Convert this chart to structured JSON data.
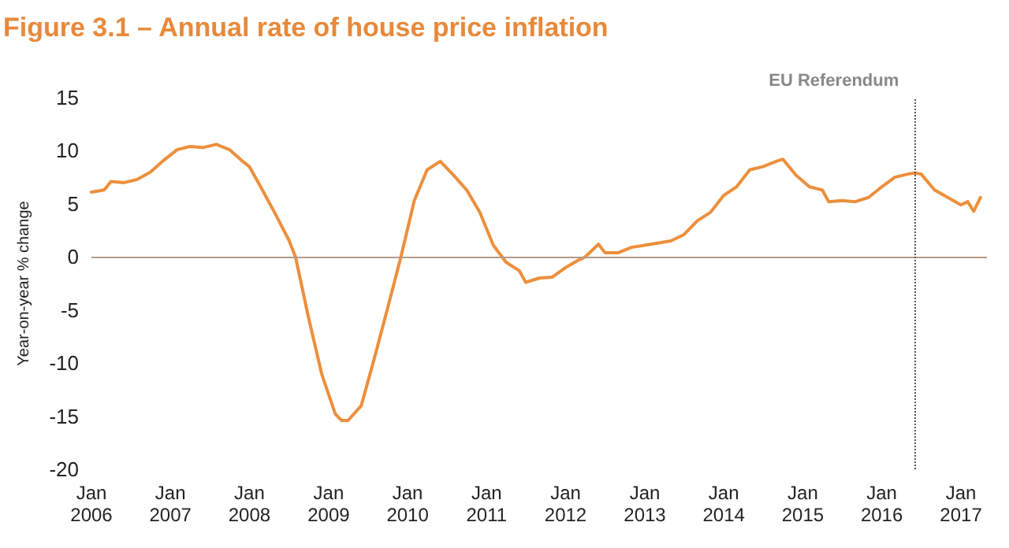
{
  "chart_data": {
    "type": "line",
    "title": "Figure 3.1 – Annual rate of house price inflation",
    "ylabel": "Year-on-year % change",
    "x": [
      "2006-01",
      "2006-03",
      "2006-04",
      "2006-06",
      "2006-08",
      "2006-10",
      "2006-12",
      "2007-02",
      "2007-04",
      "2007-06",
      "2007-08",
      "2007-10",
      "2007-12",
      "2008-01",
      "2008-03",
      "2008-05",
      "2008-07",
      "2008-08",
      "2008-10",
      "2008-12",
      "2009-02",
      "2009-03",
      "2009-04",
      "2009-06",
      "2009-08",
      "2009-10",
      "2009-12",
      "2010-02",
      "2010-04",
      "2010-06",
      "2010-08",
      "2010-10",
      "2010-12",
      "2011-02",
      "2011-04",
      "2011-06",
      "2011-07",
      "2011-09",
      "2011-11",
      "2012-01",
      "2012-03",
      "2012-04",
      "2012-06",
      "2012-07",
      "2012-09",
      "2012-11",
      "2013-01",
      "2013-03",
      "2013-05",
      "2013-07",
      "2013-09",
      "2013-11",
      "2014-01",
      "2014-03",
      "2014-05",
      "2014-07",
      "2014-09",
      "2014-10",
      "2014-12",
      "2015-02",
      "2015-04",
      "2015-05",
      "2015-07",
      "2015-09",
      "2015-11",
      "2016-01",
      "2016-03",
      "2016-05",
      "2016-06",
      "2016-07",
      "2016-09",
      "2016-11",
      "2017-01",
      "2017-02",
      "2017-03",
      "2017-04"
    ],
    "series": [
      {
        "color": "#ec8f3c",
        "values": [
          6.1,
          6.3,
          7.1,
          7.0,
          7.3,
          8.0,
          9.1,
          10.1,
          10.4,
          10.3,
          10.6,
          10.1,
          9.0,
          8.5,
          6.3,
          4.0,
          1.6,
          0,
          -5.8,
          -11.1,
          -14.8,
          -15.4,
          -15.4,
          -14.0,
          -9.5,
          -4.8,
          0,
          5.3,
          8.2,
          9.0,
          7.7,
          6.3,
          4.2,
          1.1,
          -0.5,
          -1.3,
          -2.4,
          -2.0,
          -1.9,
          -1.0,
          -0.3,
          0,
          1.2,
          0.4,
          0.4,
          0.9,
          1.1,
          1.3,
          1.5,
          2.1,
          3.4,
          4.2,
          5.8,
          6.6,
          8.2,
          8.5,
          9.0,
          9.2,
          7.7,
          6.6,
          6.3,
          5.2,
          5.3,
          5.2,
          5.6,
          6.6,
          7.5,
          7.8,
          7.9,
          7.8,
          6.3,
          5.6,
          4.9,
          5.2,
          4.3,
          5.6
        ]
      }
    ],
    "xlim": [
      "2006-01",
      "2017-05"
    ],
    "xticks": [
      {
        "value": "2006-01",
        "label": "Jan 2006"
      },
      {
        "value": "2007-01",
        "label": "Jan 2007"
      },
      {
        "value": "2008-01",
        "label": "Jan 2008"
      },
      {
        "value": "2009-01",
        "label": "Jan 2009"
      },
      {
        "value": "2010-01",
        "label": "Jan 2010"
      },
      {
        "value": "2011-01",
        "label": "Jan 2011"
      },
      {
        "value": "2012-01",
        "label": "Jan 2012"
      },
      {
        "value": "2013-01",
        "label": "Jan 2013"
      },
      {
        "value": "2014-01",
        "label": "Jan 2014"
      },
      {
        "value": "2015-01",
        "label": "Jan 2015"
      },
      {
        "value": "2016-01",
        "label": "Jan 2016"
      },
      {
        "value": "2017-01",
        "label": "Jan 2017"
      }
    ],
    "ylim": [
      -20,
      15
    ],
    "yticks": [
      -20,
      -15,
      -10,
      -5,
      0,
      5,
      10,
      15
    ],
    "ref_lines": [
      {
        "axis": "y",
        "value": 0,
        "color": "#b59a8a",
        "line_style": "solid"
      },
      {
        "axis": "x",
        "value": "2016-06",
        "label": "EU Referendum",
        "color": "#555555",
        "line_style": "dotted"
      }
    ],
    "grid": false,
    "marker": "none",
    "line_style": "solid"
  }
}
